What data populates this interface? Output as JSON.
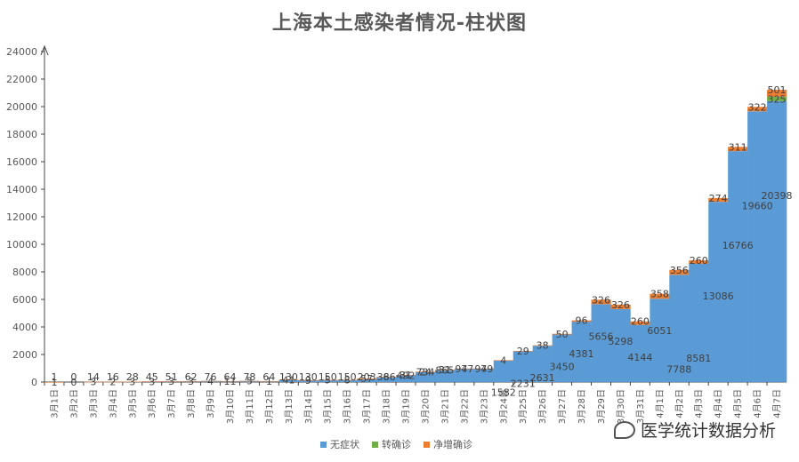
{
  "chart_data": {
    "type": "bar",
    "stacked": true,
    "title": "上海本土感染者情况-柱状图",
    "xlabel": "",
    "ylabel": "",
    "ylim": [
      0,
      24000
    ],
    "yticks": [
      0,
      2000,
      4000,
      6000,
      8000,
      10000,
      12000,
      14000,
      16000,
      18000,
      20000,
      22000,
      24000
    ],
    "grid": false,
    "legend": "bottom",
    "categories": [
      "3月1日",
      "3月2日",
      "3月3日",
      "3月4日",
      "3月5日",
      "3月6日",
      "3月7日",
      "3月8日",
      "3月9日",
      "3月10日",
      "3月11日",
      "3月12日",
      "3月13日",
      "3月14日",
      "3月15日",
      "3月16日",
      "3月17日",
      "3月18日",
      "3月19日",
      "3月20日",
      "3月21日",
      "3月22日",
      "3月23日",
      "3月24日",
      "3月25日",
      "3月26日",
      "3月27日",
      "3月28日",
      "3月29日",
      "3月30日",
      "3月31日",
      "4月1日",
      "4月2日",
      "4月3日",
      "4月4日",
      "4月5日",
      "4月6日",
      "4月7日"
    ],
    "series": [
      {
        "name": "无症状",
        "color": "#5b9bd5",
        "values": [
          1,
          0,
          14,
          16,
          28,
          45,
          51,
          62,
          76,
          64,
          78,
          64,
          130,
          130,
          150,
          150,
          203,
          366,
          492,
          734,
          865,
          977,
          979,
          1582,
          2231,
          2631,
          3450,
          4381,
          5656,
          5298,
          4144,
          6051,
          7788,
          8581,
          13086,
          16766,
          19660,
          20398
        ]
      },
      {
        "name": "转确诊",
        "color": "#70ad47",
        "values": [
          0,
          0,
          0,
          0,
          0,
          0,
          0,
          0,
          0,
          0,
          0,
          0,
          0,
          0,
          0,
          0,
          0,
          0,
          0,
          0,
          0,
          0,
          0,
          0,
          0,
          0,
          0,
          0,
          0,
          0,
          0,
          0,
          0,
          0,
          0,
          0,
          0,
          325
        ]
      },
      {
        "name": "净增确诊",
        "color": "#ed7d31",
        "values": [
          1,
          0,
          3,
          2,
          3,
          3,
          3,
          3,
          4,
          11,
          5,
          1,
          41,
          9,
          5,
          8,
          57,
          8,
          31,
          24,
          31,
          4,
          4,
          4,
          29,
          38,
          50,
          96,
          326,
          326,
          260,
          358,
          356,
          260,
          274,
          311,
          322,
          501
        ]
      }
    ],
    "data_labels": [
      [
        "1",
        "",
        "1"
      ],
      [
        "0",
        "",
        "0"
      ],
      [
        "14",
        "",
        "3"
      ],
      [
        "16",
        "",
        "2"
      ],
      [
        "28",
        "",
        "3"
      ],
      [
        "45",
        "",
        "3"
      ],
      [
        "51",
        "",
        "3"
      ],
      [
        "62",
        "",
        "3"
      ],
      [
        "76",
        "",
        "4"
      ],
      [
        "64",
        "",
        "11"
      ],
      [
        "78",
        "",
        "5"
      ],
      [
        "64",
        "",
        "1"
      ],
      [
        "130",
        "",
        "41"
      ],
      [
        "130",
        "",
        "9"
      ],
      [
        "150",
        "",
        "5"
      ],
      [
        "150",
        "",
        "8"
      ],
      [
        "203",
        "",
        "57"
      ],
      [
        "366",
        "",
        "8"
      ],
      [
        "492",
        "",
        "31"
      ],
      [
        "734",
        "",
        "24"
      ],
      [
        "865",
        "",
        "31"
      ],
      [
        "977",
        "",
        "4"
      ],
      [
        "979",
        "",
        "4"
      ],
      [
        "1582",
        "",
        "4"
      ],
      [
        "2231",
        "",
        "29"
      ],
      [
        "2631",
        "",
        "38"
      ],
      [
        "3450",
        "",
        "50"
      ],
      [
        "4381",
        "",
        "96"
      ],
      [
        "5656",
        "",
        "326"
      ],
      [
        "5298",
        "",
        "326"
      ],
      [
        "4144",
        "",
        "260"
      ],
      [
        "6051",
        "",
        "358"
      ],
      [
        "7788",
        "",
        "356"
      ],
      [
        "8581",
        "",
        "260"
      ],
      [
        "13086",
        "",
        "274"
      ],
      [
        "16766",
        "",
        "311"
      ],
      [
        "19660",
        "",
        "322"
      ],
      [
        "20398",
        "325",
        "501"
      ]
    ]
  },
  "watermark": {
    "text": "医学统计数据分析"
  }
}
